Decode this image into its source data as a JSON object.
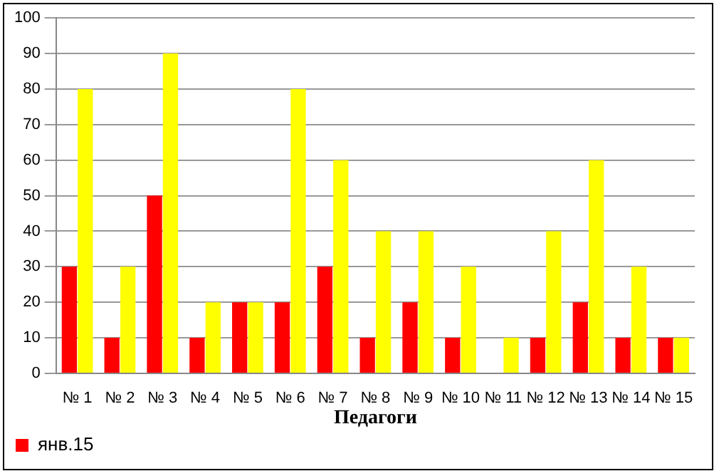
{
  "chart_data": {
    "type": "bar",
    "xlabel": "Педагоги",
    "categories": [
      "№ 1",
      "№ 2",
      "№ 3",
      "№ 4",
      "№ 5",
      "№ 6",
      "№ 7",
      "№ 8",
      "№ 9",
      "№ 10",
      "№ 11",
      "№ 12",
      "№ 13",
      "№ 14",
      "№ 15"
    ],
    "series": [
      {
        "name": "янв.15",
        "color": "#ff0000",
        "values": [
          30,
          10,
          50,
          10,
          20,
          20,
          30,
          10,
          20,
          10,
          0,
          10,
          20,
          10,
          10
        ]
      },
      {
        "color": "#ffff00",
        "values": [
          80,
          30,
          90,
          20,
          20,
          80,
          60,
          40,
          40,
          30,
          10,
          40,
          60,
          30,
          10
        ]
      }
    ],
    "ylim": [
      0,
      100
    ],
    "yticks": [
      0,
      10,
      20,
      30,
      40,
      50,
      60,
      70,
      80,
      90,
      100
    ],
    "grid": "y",
    "legend": "bottom left"
  }
}
